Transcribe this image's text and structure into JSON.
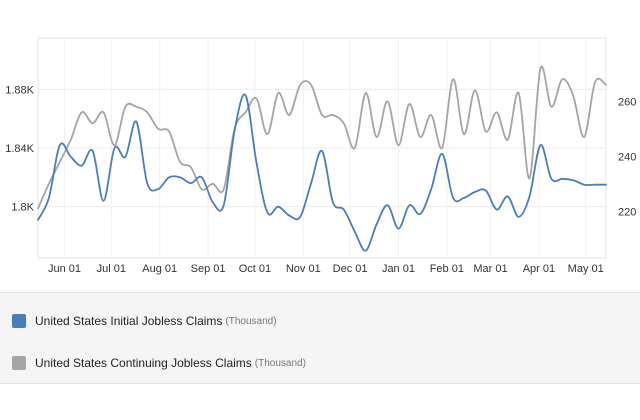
{
  "chart_data": {
    "type": "line",
    "title": "",
    "xlabel": "",
    "x_tick_labels": [
      "Jun 01",
      "Jul 01",
      "Aug 01",
      "Sep 01",
      "Oct 01",
      "Nov 01",
      "Dec 01",
      "Jan 01",
      "Feb 01",
      "Mar 01",
      "Apr 01",
      "May 01"
    ],
    "left_axis": {
      "tick_labels": [
        "1.8K",
        "1.84K",
        "1.88K"
      ],
      "ticks": [
        1800,
        1840,
        1880
      ],
      "range": [
        1765,
        1915
      ]
    },
    "right_axis": {
      "tick_labels": [
        "220",
        "240",
        "260"
      ],
      "ticks": [
        220,
        240,
        260
      ],
      "range": [
        203,
        283
      ]
    },
    "grid": true,
    "legend_placement": "bottom",
    "series": [
      {
        "name": "United States Initial Jobless Claims",
        "unit": "(Thousand)",
        "axis": "left",
        "color": "#4a7ebb",
        "x": [
          "2021-05-15",
          "2021-05-22",
          "2021-05-29",
          "2021-06-05",
          "2021-06-12",
          "2021-06-19",
          "2021-06-26",
          "2021-07-03",
          "2021-07-10",
          "2021-07-17",
          "2021-07-24",
          "2021-07-31",
          "2021-08-07",
          "2021-08-14",
          "2021-08-21",
          "2021-08-28",
          "2021-09-04",
          "2021-09-11",
          "2021-09-18",
          "2021-09-25",
          "2021-10-02",
          "2021-10-09",
          "2021-10-16",
          "2021-10-23",
          "2021-10-30",
          "2021-11-06",
          "2021-11-13",
          "2021-11-20",
          "2021-11-27",
          "2021-12-04",
          "2021-12-11",
          "2021-12-18",
          "2021-12-25",
          "2022-01-01",
          "2022-01-08",
          "2022-01-15",
          "2022-01-22",
          "2022-01-29",
          "2022-02-05",
          "2022-02-12",
          "2022-02-19",
          "2022-02-26",
          "2022-03-05",
          "2022-03-12",
          "2022-03-19",
          "2022-03-26",
          "2022-04-02",
          "2022-04-09",
          "2022-04-16",
          "2022-04-23",
          "2022-04-30",
          "2022-05-07",
          "2022-05-14"
        ],
        "values": [
          1791,
          1806,
          1842,
          1834,
          1828,
          1838,
          1804,
          1840,
          1834,
          1858,
          1816,
          1812,
          1820,
          1820,
          1816,
          1820,
          1803,
          1801,
          1852,
          1876,
          1830,
          1796,
          1800,
          1794,
          1793,
          1816,
          1838,
          1803,
          1798,
          1783,
          1770,
          1788,
          1801,
          1785,
          1801,
          1795,
          1812,
          1836,
          1806,
          1806,
          1810,
          1811,
          1798,
          1807,
          1793,
          1807,
          1842,
          1819,
          1819,
          1818,
          1815,
          1815,
          1815
        ]
      },
      {
        "name": "United States Continuing Jobless Claims",
        "unit": "(Thousand)",
        "axis": "right",
        "color": "#a5a5a5",
        "x": [
          "2021-05-15",
          "2021-05-22",
          "2021-05-29",
          "2021-06-05",
          "2021-06-12",
          "2021-06-19",
          "2021-06-26",
          "2021-07-03",
          "2021-07-10",
          "2021-07-17",
          "2021-07-24",
          "2021-07-31",
          "2021-08-07",
          "2021-08-14",
          "2021-08-21",
          "2021-08-28",
          "2021-09-04",
          "2021-09-11",
          "2021-09-18",
          "2021-09-25",
          "2021-10-02",
          "2021-10-09",
          "2021-10-16",
          "2021-10-23",
          "2021-10-30",
          "2021-11-06",
          "2021-11-13",
          "2021-11-20",
          "2021-11-27",
          "2021-12-04",
          "2021-12-11",
          "2021-12-18",
          "2021-12-25",
          "2022-01-01",
          "2022-01-08",
          "2022-01-15",
          "2022-01-22",
          "2022-01-29",
          "2022-02-05",
          "2022-02-12",
          "2022-02-19",
          "2022-02-26",
          "2022-03-05",
          "2022-03-12",
          "2022-03-19",
          "2022-03-26",
          "2022-04-02",
          "2022-04-09",
          "2022-04-16",
          "2022-04-23",
          "2022-04-30",
          "2022-05-07",
          "2022-05-14"
        ],
        "values": [
          221,
          230,
          238,
          246,
          256,
          252,
          256,
          244,
          258,
          258,
          256,
          250,
          249,
          238,
          236,
          228,
          230,
          228,
          250,
          256,
          261,
          248,
          263,
          255,
          266,
          266,
          255,
          255,
          252,
          243,
          263,
          247,
          260,
          244,
          259,
          247,
          255,
          243,
          268,
          248,
          264,
          249,
          256,
          246,
          263,
          232,
          272,
          258,
          268,
          262,
          247,
          267,
          266
        ]
      }
    ]
  }
}
